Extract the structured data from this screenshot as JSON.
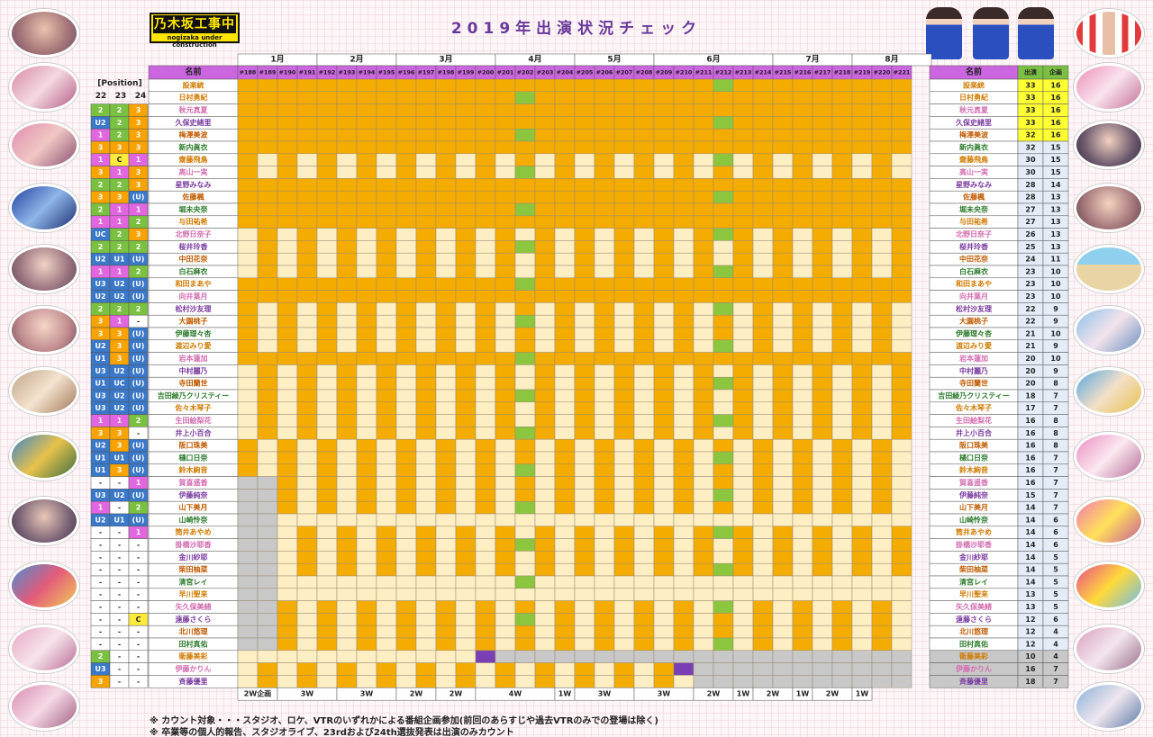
{
  "logo": {
    "main": "乃木坂工事中",
    "sub": "nogizaka under construction"
  },
  "title": "2019年出演状況チェック",
  "position_header": "[Position]",
  "position_singles": [
    "22",
    "23",
    "24"
  ],
  "name_header": "名前",
  "right_headers": {
    "name": "名前",
    "appear": "出演",
    "plan": "企画"
  },
  "months": [
    {
      "label": "1月",
      "start": 0,
      "count": 4
    },
    {
      "label": "2月",
      "start": 4,
      "count": 4
    },
    {
      "label": "3月",
      "start": 8,
      "count": 5
    },
    {
      "label": "4月",
      "start": 13,
      "count": 4
    },
    {
      "label": "5月",
      "start": 17,
      "count": 4
    },
    {
      "label": "6月",
      "start": 21,
      "count": 6
    },
    {
      "label": "7月",
      "start": 27,
      "count": 4
    },
    {
      "label": "8月",
      "start": 31,
      "count": 4
    }
  ],
  "episodes": [
    "#188",
    "#189",
    "#190",
    "#191",
    "#192",
    "#193",
    "#194",
    "#195",
    "#196",
    "#197",
    "#198",
    "#199",
    "#200",
    "#201",
    "#202",
    "#203",
    "#204",
    "#205",
    "#206",
    "#207",
    "#208",
    "#209",
    "#210",
    "#211",
    "#212",
    "#213",
    "#214",
    "#215",
    "#216",
    "#217",
    "#218",
    "#219",
    "#220",
    "#221"
  ],
  "week_groups": [
    {
      "label": "2W企画",
      "start": 0,
      "count": 2
    },
    {
      "label": "3W",
      "start": 2,
      "count": 3
    },
    {
      "label": "3W",
      "start": 5,
      "count": 3
    },
    {
      "label": "2W",
      "start": 8,
      "count": 2
    },
    {
      "label": "2W",
      "start": 10,
      "count": 2
    },
    {
      "label": "4W",
      "start": 12,
      "count": 4
    },
    {
      "label": "1W",
      "start": 16,
      "count": 1
    },
    {
      "label": "3W",
      "start": 17,
      "count": 3
    },
    {
      "label": "3W",
      "start": 20,
      "count": 3
    },
    {
      "label": "2W",
      "start": 23,
      "count": 2
    },
    {
      "label": "1W",
      "start": 25,
      "count": 1
    },
    {
      "label": "2W",
      "start": 26,
      "count": 2
    },
    {
      "label": "1W",
      "start": 28,
      "count": 1
    },
    {
      "label": "2W",
      "start": 29,
      "count": 2
    },
    {
      "label": "1W",
      "start": 31,
      "count": 1
    }
  ],
  "members": [
    {
      "name": "設楽統",
      "pos": [
        "",
        "",
        ""
      ],
      "appear": "33",
      "plan": "16"
    },
    {
      "name": "日村勇紀",
      "pos": [
        "",
        "",
        ""
      ],
      "appear": "33",
      "plan": "16"
    },
    {
      "name": "秋元真夏",
      "pos": [
        "2",
        "2",
        "3"
      ],
      "appear": "33",
      "plan": "16"
    },
    {
      "name": "久保史緒里",
      "pos": [
        "U2",
        "2",
        "3"
      ],
      "appear": "33",
      "plan": "16"
    },
    {
      "name": "梅澤美波",
      "pos": [
        "1",
        "2",
        "3"
      ],
      "appear": "32",
      "plan": "16"
    },
    {
      "name": "新内眞衣",
      "pos": [
        "3",
        "3",
        "3"
      ],
      "appear": "32",
      "plan": "15"
    },
    {
      "name": "齋藤飛鳥",
      "pos": [
        "1",
        "C",
        "1"
      ],
      "appear": "30",
      "plan": "15"
    },
    {
      "name": "高山一実",
      "pos": [
        "3",
        "1",
        "3"
      ],
      "appear": "30",
      "plan": "15"
    },
    {
      "name": "星野みなみ",
      "pos": [
        "2",
        "2",
        "3"
      ],
      "appear": "28",
      "plan": "14"
    },
    {
      "name": "佐藤楓",
      "pos": [
        "3",
        "3",
        "(U)"
      ],
      "appear": "28",
      "plan": "13"
    },
    {
      "name": "堀未央奈",
      "pos": [
        "2",
        "1",
        "1"
      ],
      "appear": "27",
      "plan": "13"
    },
    {
      "name": "与田祐希",
      "pos": [
        "1",
        "1",
        "2"
      ],
      "appear": "27",
      "plan": "13"
    },
    {
      "name": "北野日奈子",
      "pos": [
        "UC",
        "2",
        "3"
      ],
      "appear": "26",
      "plan": "13"
    },
    {
      "name": "桜井玲香",
      "pos": [
        "2",
        "2",
        "2"
      ],
      "appear": "25",
      "plan": "13"
    },
    {
      "name": "中田花奈",
      "pos": [
        "U2",
        "U1",
        "(U)"
      ],
      "appear": "24",
      "plan": "11"
    },
    {
      "name": "白石麻衣",
      "pos": [
        "1",
        "1",
        "2"
      ],
      "appear": "23",
      "plan": "10"
    },
    {
      "name": "和田まあや",
      "pos": [
        "U3",
        "U2",
        "(U)"
      ],
      "appear": "23",
      "plan": "10"
    },
    {
      "name": "向井葉月",
      "pos": [
        "U2",
        "U2",
        "(U)"
      ],
      "appear": "23",
      "plan": "10"
    },
    {
      "name": "松村沙友理",
      "pos": [
        "2",
        "2",
        "2"
      ],
      "appear": "22",
      "plan": "9"
    },
    {
      "name": "大園桃子",
      "pos": [
        "3",
        "1",
        "-"
      ],
      "appear": "22",
      "plan": "9"
    },
    {
      "name": "伊藤理々杏",
      "pos": [
        "3",
        "3",
        "(U)"
      ],
      "appear": "21",
      "plan": "10"
    },
    {
      "name": "渡辺みり愛",
      "pos": [
        "U2",
        "3",
        "(U)"
      ],
      "appear": "21",
      "plan": "9"
    },
    {
      "name": "岩本蓮加",
      "pos": [
        "U1",
        "3",
        "(U)"
      ],
      "appear": "20",
      "plan": "10"
    },
    {
      "name": "中村麗乃",
      "pos": [
        "U3",
        "U2",
        "(U)"
      ],
      "appear": "20",
      "plan": "9"
    },
    {
      "name": "寺田蘭世",
      "pos": [
        "U1",
        "UC",
        "(U)"
      ],
      "appear": "20",
      "plan": "8"
    },
    {
      "name": "吉田綾乃クリスティー",
      "pos": [
        "U3",
        "U2",
        "(U)"
      ],
      "appear": "18",
      "plan": "7"
    },
    {
      "name": "佐々木琴子",
      "pos": [
        "U3",
        "U2",
        "(U)"
      ],
      "appear": "17",
      "plan": "7"
    },
    {
      "name": "生田絵梨花",
      "pos": [
        "1",
        "1",
        "2"
      ],
      "appear": "16",
      "plan": "8"
    },
    {
      "name": "井上小百合",
      "pos": [
        "3",
        "3",
        "-"
      ],
      "appear": "16",
      "plan": "8"
    },
    {
      "name": "阪口珠美",
      "pos": [
        "U2",
        "3",
        "(U)"
      ],
      "appear": "16",
      "plan": "8"
    },
    {
      "name": "樋口日奈",
      "pos": [
        "U1",
        "U1",
        "(U)"
      ],
      "appear": "16",
      "plan": "7"
    },
    {
      "name": "鈴木絢音",
      "pos": [
        "U1",
        "3",
        "(U)"
      ],
      "appear": "16",
      "plan": "7"
    },
    {
      "name": "賀喜遥香",
      "pos": [
        "-",
        "-",
        "1"
      ],
      "appear": "16",
      "plan": "7"
    },
    {
      "name": "伊藤純奈",
      "pos": [
        "U3",
        "U2",
        "(U)"
      ],
      "appear": "15",
      "plan": "7"
    },
    {
      "name": "山下美月",
      "pos": [
        "1",
        "-",
        "2"
      ],
      "appear": "14",
      "plan": "7"
    },
    {
      "name": "山崎怜奈",
      "pos": [
        "U2",
        "U1",
        "(U)"
      ],
      "appear": "14",
      "plan": "6"
    },
    {
      "name": "筒井あやめ",
      "pos": [
        "-",
        "-",
        "1"
      ],
      "appear": "14",
      "plan": "6"
    },
    {
      "name": "掛橋沙耶香",
      "pos": [
        "-",
        "-",
        "-"
      ],
      "appear": "14",
      "plan": "6"
    },
    {
      "name": "金川紗耶",
      "pos": [
        "-",
        "-",
        "-"
      ],
      "appear": "14",
      "plan": "5"
    },
    {
      "name": "柴田柚菜",
      "pos": [
        "-",
        "-",
        "-"
      ],
      "appear": "14",
      "plan": "5"
    },
    {
      "name": "清宮レイ",
      "pos": [
        "-",
        "-",
        "-"
      ],
      "appear": "14",
      "plan": "5"
    },
    {
      "name": "早川聖来",
      "pos": [
        "-",
        "-",
        "-"
      ],
      "appear": "13",
      "plan": "5"
    },
    {
      "name": "矢久保美緒",
      "pos": [
        "-",
        "-",
        "-"
      ],
      "appear": "13",
      "plan": "5"
    },
    {
      "name": "遠藤さくら",
      "pos": [
        "-",
        "-",
        "C"
      ],
      "appear": "12",
      "plan": "6"
    },
    {
      "name": "北川悠理",
      "pos": [
        "-",
        "-",
        "-"
      ],
      "appear": "12",
      "plan": "4"
    },
    {
      "name": "田村真佑",
      "pos": [
        "-",
        "-",
        "-"
      ],
      "appear": "12",
      "plan": "4"
    },
    {
      "name": "衛藤美彩",
      "pos": [
        "2",
        "-",
        "-"
      ],
      "appear": "10",
      "plan": "4"
    },
    {
      "name": "伊藤かりん",
      "pos": [
        "U3",
        "-",
        "-"
      ],
      "appear": "16",
      "plan": "7"
    },
    {
      "name": "斉藤優里",
      "pos": [
        "3",
        "-",
        "-"
      ],
      "appear": "18",
      "plan": "7"
    }
  ],
  "footnotes": [
    "※ カウント対象・・・スタジオ、ロケ、VTRのいずれかによる番組企画参加(前回のあらすじや過去VTRのみでの登場は除く)",
    "※ 卒業等の個人的報告、スタジオライブ、23rdおよび24th選抜発表は出演のみカウント"
  ],
  "colors": {
    "appear": "#f5ac00",
    "absent": "#fdeec3",
    "special": "#8cc63f",
    "graduated": "#c8c8c8",
    "purple": "#7b3fb5",
    "header": "#cc66e0",
    "pos_blue": "#3a78c9",
    "pos_pink": "#e266e0",
    "pos_green": "#7ac142",
    "pos_yellow": "#ffec3a",
    "pos_orange": "#f8a300",
    "top_highlight": "#ffff33"
  },
  "legend_icons": [
    "group-photo-icon"
  ]
}
